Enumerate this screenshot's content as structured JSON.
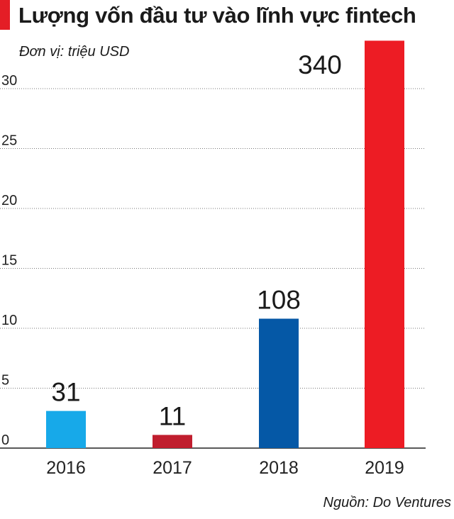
{
  "colors": {
    "accent": "#e41e26",
    "grid": "#777777",
    "axis": "#222222"
  },
  "chart_data": {
    "type": "bar",
    "title": "Lượng vốn đầu tư vào lĩnh vực fintech",
    "unit_label": "Đơn vị: triệu USD",
    "source": "Nguồn: Do Ventures",
    "categories": [
      "2016",
      "2017",
      "2018",
      "2019"
    ],
    "values": [
      31,
      11,
      108,
      340
    ],
    "data_labels": [
      "31",
      "11",
      "108",
      "340"
    ],
    "bar_colors": [
      "#17a9e9",
      "#c01e2e",
      "#0558a6",
      "#ed1c24"
    ],
    "label_colors": [
      "#1a1a1a",
      "#1a1a1a",
      "#1a1a1a",
      "#e41e26"
    ],
    "ytick_values": [
      0,
      5,
      10,
      15,
      20,
      25,
      30
    ],
    "ytick_labels": [
      "0",
      "5",
      "10",
      "15",
      "20",
      "25",
      "30"
    ],
    "ylim": [
      0,
      36
    ],
    "grid": true,
    "legend": "none"
  }
}
